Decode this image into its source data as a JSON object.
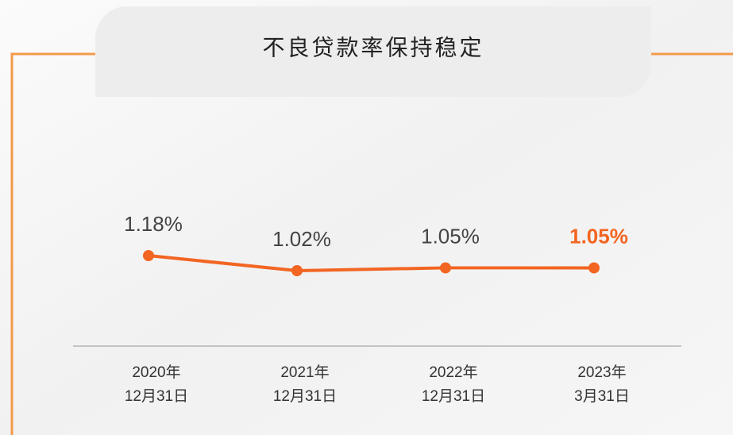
{
  "chart_data": {
    "type": "line",
    "title": "不良贷款率保持稳定",
    "categories": [
      [
        "2020年",
        "12月31日"
      ],
      [
        "2021年",
        "12月31日"
      ],
      [
        "2022年",
        "12月31日"
      ],
      [
        "2023年",
        "3月31日"
      ]
    ],
    "values": [
      1.18,
      1.02,
      1.05,
      1.05
    ],
    "value_labels": [
      "1.18%",
      "1.02%",
      "1.05%",
      "1.05%"
    ],
    "value_label_colors": [
      "#444444",
      "#444444",
      "#444444",
      "#f26522"
    ],
    "color": "#f26522"
  }
}
